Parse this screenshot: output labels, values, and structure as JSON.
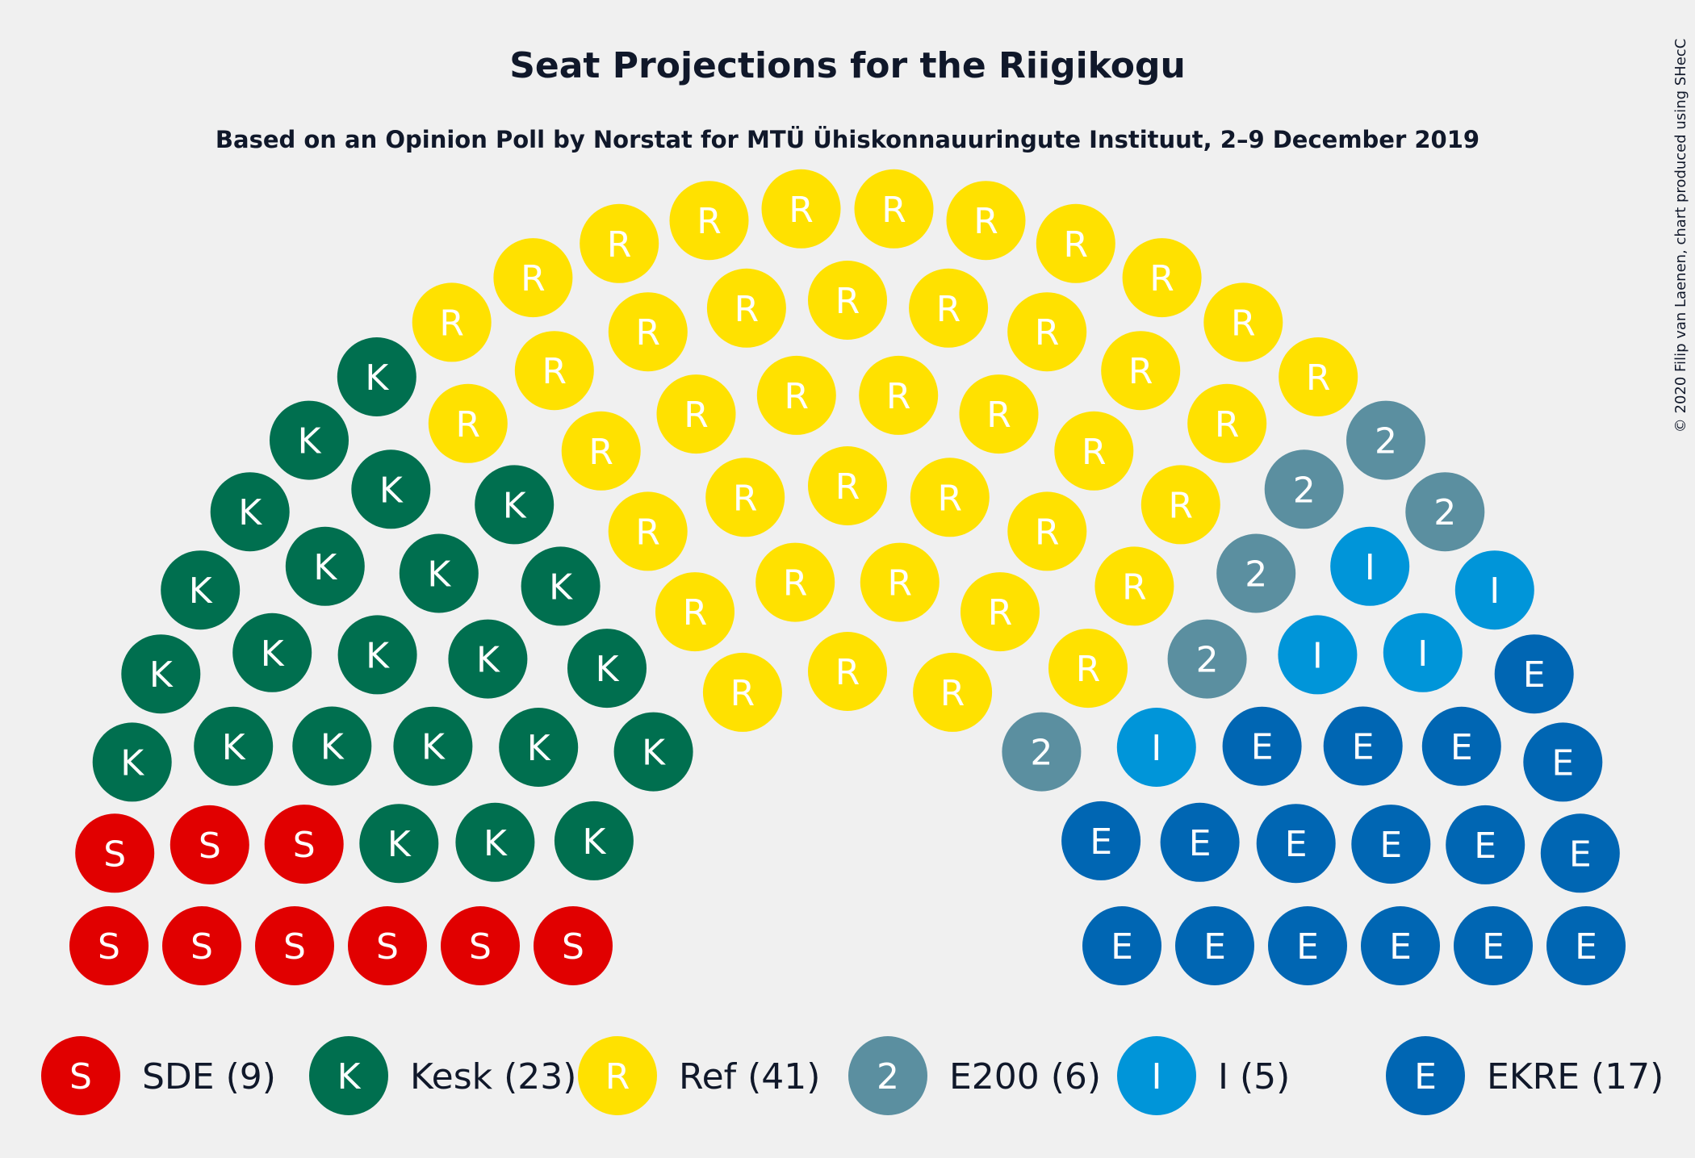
{
  "chart_data": {
    "type": "parliament",
    "title": "Seat Projections for the Riigikogu",
    "subtitle": "Based on an Opinion Poll by Norstat for MTÜ Ühiskonnauuringute Instituut, 2–9 December 2019",
    "copyright": "© 2020 Filip van Laenen, chart produced using SHecC",
    "total_seats": 101,
    "parties": [
      {
        "name": "SDE",
        "symbol": "S",
        "seats": 9,
        "legend": "SDE (9)",
        "color": "#e10000"
      },
      {
        "name": "Kesk",
        "symbol": "K",
        "seats": 23,
        "legend": "Kesk (23)",
        "color": "#006f4f"
      },
      {
        "name": "Ref",
        "symbol": "R",
        "seats": 41,
        "legend": "Ref (41)",
        "color": "#ffe100"
      },
      {
        "name": "E200",
        "symbol": "2",
        "seats": 6,
        "legend": "E200 (6)",
        "color": "#5b8fa0"
      },
      {
        "name": "I",
        "symbol": "I",
        "seats": 5,
        "legend": "I (5)",
        "color": "#0095d9"
      },
      {
        "name": "EKRE",
        "symbol": "E",
        "seats": 17,
        "legend": "EKRE (17)",
        "color": "#0066b3"
      }
    ]
  }
}
